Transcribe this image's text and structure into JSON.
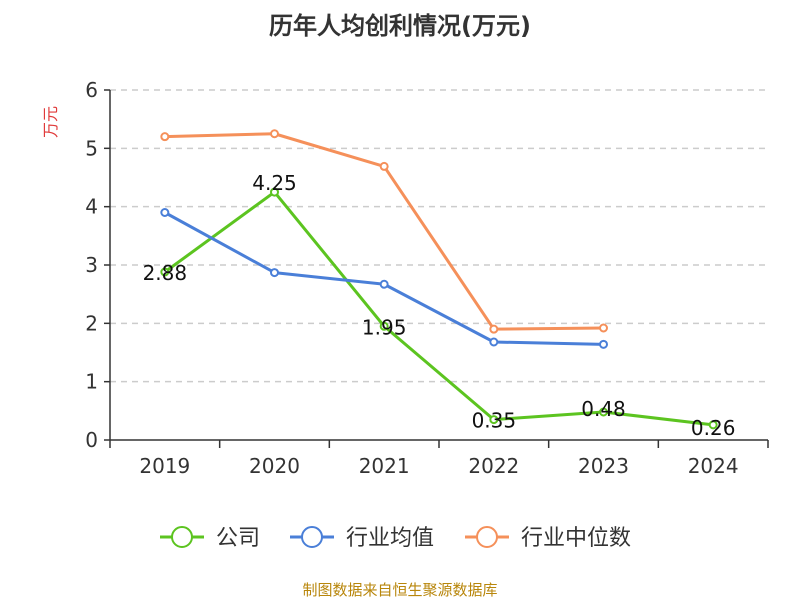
{
  "chart_data": {
    "type": "line",
    "title": "历年人均创利情况(万元)",
    "ylabel": "万元",
    "xlabel": "",
    "categories": [
      "2019",
      "2020",
      "2021",
      "2022",
      "2023",
      "2024"
    ],
    "ylim": [
      0,
      6
    ],
    "yticks": [
      "0",
      "1",
      "2",
      "3",
      "4",
      "5",
      "6"
    ],
    "grid": "horizontal-dashed",
    "legend_position": "bottom",
    "series": [
      {
        "name": "公司",
        "color": "#5cc420",
        "values": [
          2.88,
          4.25,
          1.95,
          0.35,
          0.48,
          0.26
        ],
        "labels": [
          "2.88",
          "4.25",
          "1.95",
          "0.35",
          "0.48",
          "0.26"
        ]
      },
      {
        "name": "行业均值",
        "color": "#4a7fd8",
        "values": [
          3.9,
          2.87,
          2.67,
          1.68,
          1.64,
          null
        ]
      },
      {
        "name": "行业中位数",
        "color": "#f5905a",
        "values": [
          5.2,
          5.25,
          4.69,
          1.9,
          1.92,
          null
        ]
      }
    ]
  },
  "source": "制图数据来自恒生聚源数据库"
}
